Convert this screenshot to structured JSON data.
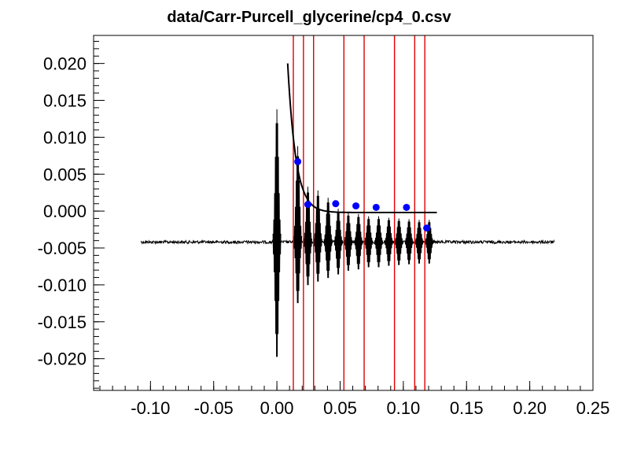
{
  "chart_data": {
    "type": "scatter",
    "title": "data/Carr-Purcell_glycerine/cp4_0.csv",
    "xlabel": "",
    "ylabel": "",
    "xlim": [
      -0.145,
      0.25
    ],
    "ylim": [
      -0.0243,
      0.0238
    ],
    "x_ticks": [
      -0.1,
      -0.05,
      0.0,
      0.05,
      0.1,
      0.15,
      0.2,
      0.25
    ],
    "x_tick_labels": [
      "-0.10",
      "-0.05",
      "0.00",
      "0.05",
      "0.10",
      "0.15",
      "0.20",
      "0.25"
    ],
    "y_ticks": [
      -0.02,
      -0.015,
      -0.01,
      -0.005,
      0.0,
      0.005,
      0.01,
      0.015,
      0.02
    ],
    "y_tick_labels": [
      "-0.020",
      "-0.015",
      "-0.010",
      "-0.005",
      "0.000",
      "0.005",
      "0.010",
      "0.015",
      "0.020"
    ],
    "grid": false,
    "legend": "none",
    "series": [
      {
        "kind": "markers",
        "color": "#0000ff",
        "x": [
          0.0165,
          0.0245,
          0.0465,
          0.0625,
          0.0785,
          0.1025,
          0.1185
        ],
        "y": [
          0.0067,
          0.0009,
          0.001,
          0.0007,
          0.0005,
          0.0005,
          -0.0023
        ]
      },
      {
        "kind": "fit-curve",
        "color": "#000000",
        "function": "A*exp(-(x-x0)/tau)+c",
        "params": {
          "A": 0.0202,
          "x0": 0.0085,
          "tau": 0.0065,
          "c": -0.0002
        },
        "x_range": [
          0.0085,
          0.1265
        ]
      },
      {
        "kind": "waveform",
        "color": "#000000",
        "x_range": [
          -0.1075,
          0.2195
        ],
        "baseline": -0.0042,
        "noise": 0.0002,
        "echo_times": [
          0.0,
          0.0165,
          0.0245,
          0.0325,
          0.0405,
          0.0485,
          0.0565,
          0.0645,
          0.0725,
          0.0805,
          0.0885,
          0.0965,
          0.1045,
          0.1125,
          0.1205
        ],
        "echo_amplitudes_up": [
          0.018,
          0.013,
          0.0075,
          0.007,
          0.006,
          0.0045,
          0.004,
          0.0038,
          0.0035,
          0.0035,
          0.0033,
          0.0032,
          0.0031,
          0.003,
          0.003
        ],
        "echo_amplitudes_down": [
          0.016,
          0.0085,
          0.006,
          0.0055,
          0.005,
          0.0045,
          0.004,
          0.0038,
          0.0035,
          0.0035,
          0.0033,
          0.0032,
          0.0031,
          0.003,
          0.003
        ]
      }
    ],
    "vertical_markers": {
      "color": "#e00000",
      "x": [
        0.013,
        0.021,
        0.029,
        0.053,
        0.069,
        0.093,
        0.109,
        0.117
      ]
    }
  }
}
